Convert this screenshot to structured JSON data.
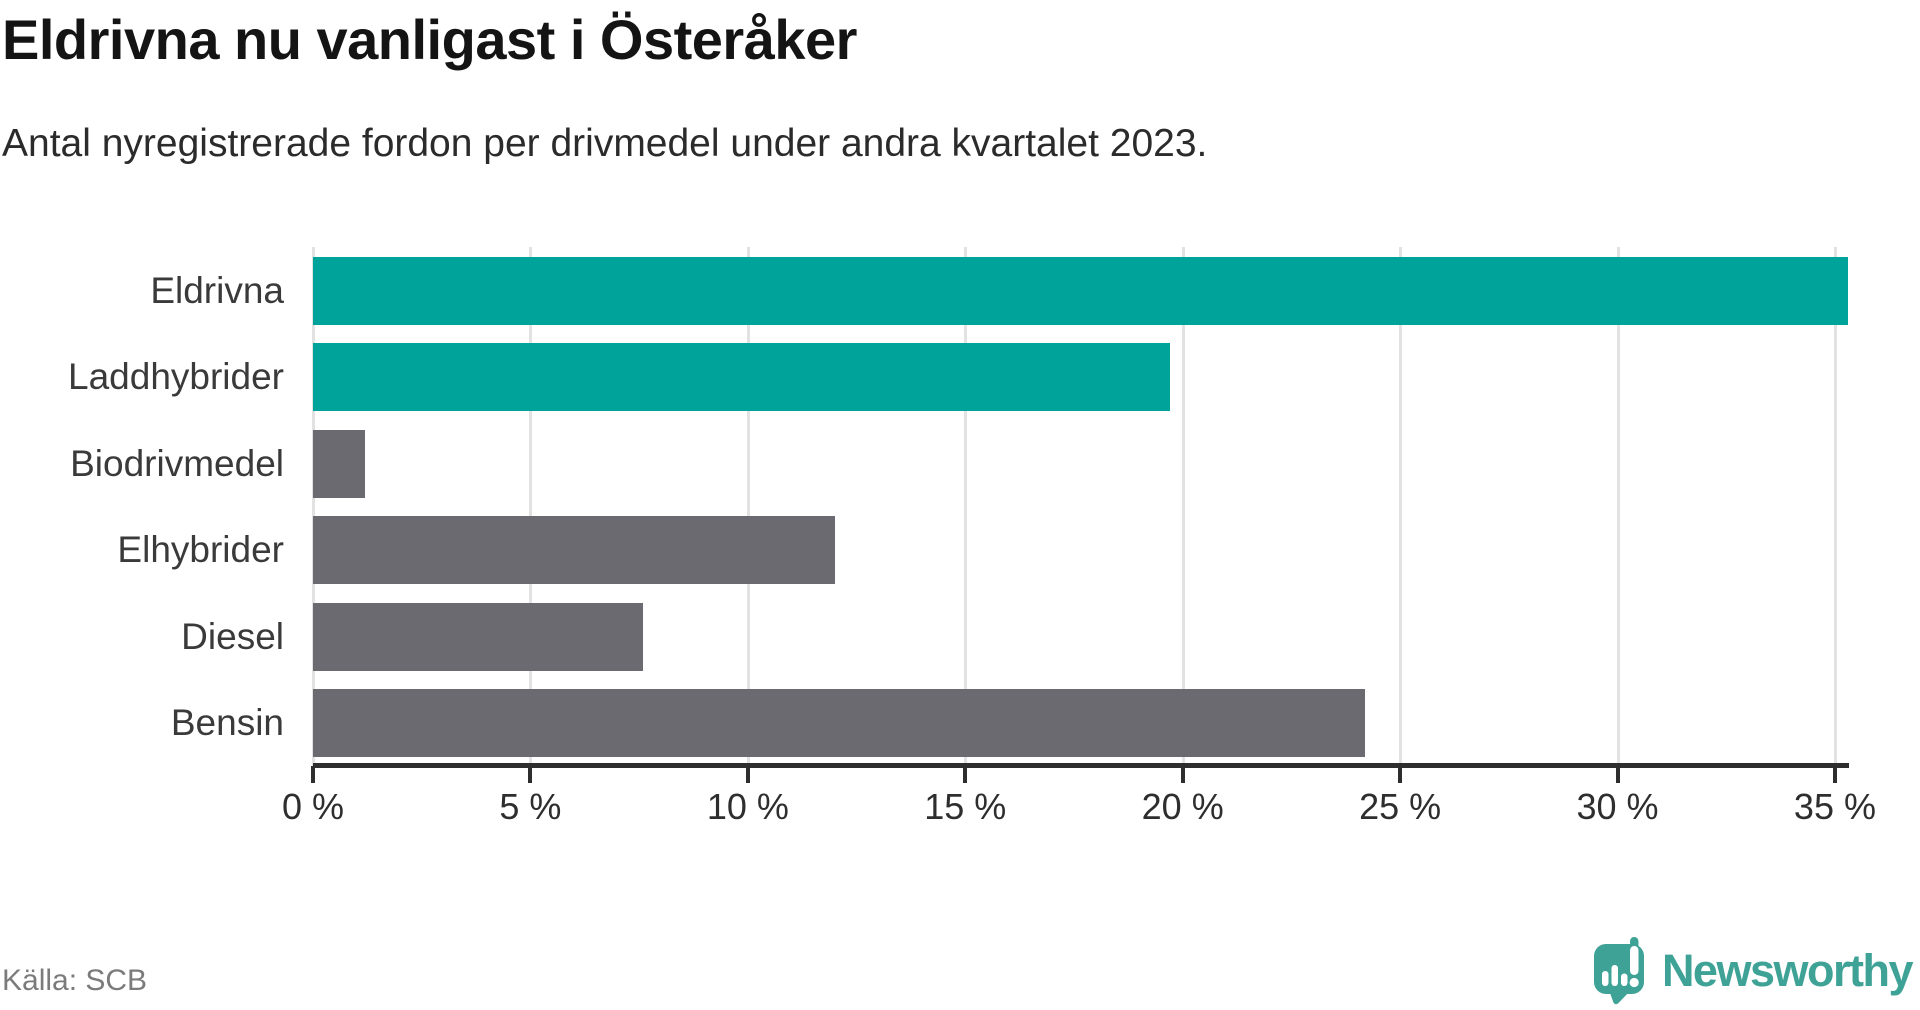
{
  "title": "Eldrivna nu vanligast i Österåker",
  "subtitle": "Antal nyregistrerade fordon per drivmedel under andra kvartalet 2023.",
  "source": "Källa: SCB",
  "branding": {
    "name": "Newsworthy",
    "icon": "newsworthy-speech-bubble-barchart-icon",
    "color": "#3fa296"
  },
  "colors": {
    "highlight": "#00a39a",
    "default": "#6b6a70",
    "axis": "#2e2e2e",
    "gridline": "#e2e2e2",
    "title_text": "#141414",
    "label_text": "#3a3a3a",
    "source_text": "#7b7b7b"
  },
  "chart_data": {
    "type": "bar",
    "orientation": "horizontal",
    "title": "Eldrivna nu vanligast i Österåker",
    "subtitle": "Antal nyregistrerade fordon per drivmedel under andra kvartalet 2023.",
    "categories": [
      "Eldrivna",
      "Laddhybrider",
      "Biodrivmedel",
      "Elhybrider",
      "Diesel",
      "Bensin"
    ],
    "values": [
      35.3,
      19.7,
      1.2,
      12.0,
      7.6,
      24.2
    ],
    "highlighted": [
      true,
      true,
      false,
      false,
      false,
      false
    ],
    "unit": "%",
    "xlabel": "",
    "ylabel": "",
    "xlim": [
      0,
      35.3
    ],
    "x_tick_values": [
      0,
      5,
      10,
      15,
      20,
      25,
      30,
      35
    ],
    "x_tick_labels": [
      "0 %",
      "5 %",
      "10 %",
      "15 %",
      "20 %",
      "25 %",
      "30 %",
      "35 %"
    ],
    "grid": true,
    "legend": false,
    "value_labels": false
  }
}
